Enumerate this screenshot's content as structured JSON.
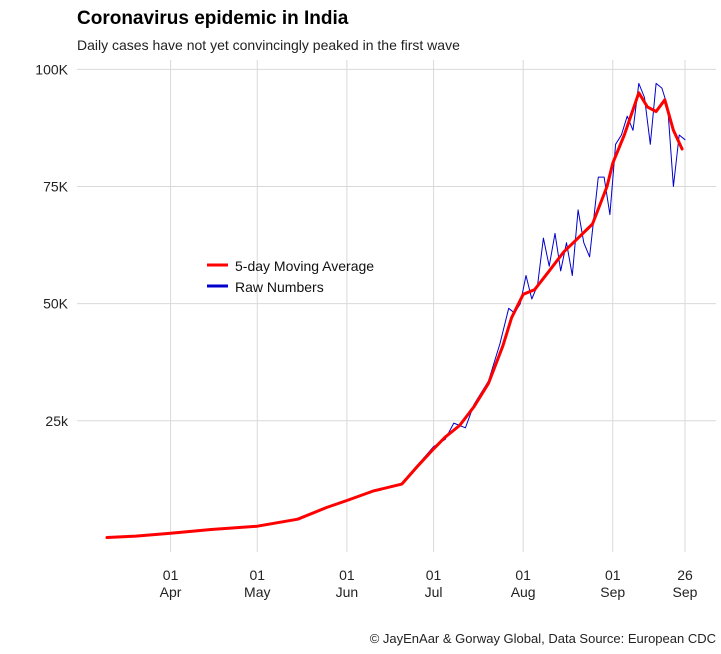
{
  "chart_data": {
    "type": "line",
    "title": "Coronavirus epidemic in India",
    "subtitle": "Daily cases have not yet convincingly peaked in the first wave",
    "caption": "© JayEnAar & Gorway Global, Data Source: European CDC",
    "xlabel": "",
    "ylabel": "",
    "xlim": [
      "2020-03-10",
      "2020-09-26"
    ],
    "ylim": [
      -3000,
      102000
    ],
    "grid": true,
    "legend_position": "left-middle",
    "y_ticks": [
      {
        "value": 25000,
        "label": "25k"
      },
      {
        "value": 50000,
        "label": "50K"
      },
      {
        "value": 75000,
        "label": "75K"
      },
      {
        "value": 100000,
        "label": "100K"
      }
    ],
    "x_ticks": [
      {
        "date": "2020-04-01",
        "day": "01",
        "month": "Apr"
      },
      {
        "date": "2020-05-01",
        "day": "01",
        "month": "May"
      },
      {
        "date": "2020-06-01",
        "day": "01",
        "month": "Jun"
      },
      {
        "date": "2020-07-01",
        "day": "01",
        "month": "Jul"
      },
      {
        "date": "2020-08-01",
        "day": "01",
        "month": "Aug"
      },
      {
        "date": "2020-09-01",
        "day": "01",
        "month": "Sep"
      },
      {
        "date": "2020-09-26",
        "day": "26",
        "month": "Sep"
      }
    ],
    "series": [
      {
        "name": "5-day Moving Average",
        "color": "#ff0000",
        "points": [
          [
            "2020-03-10",
            100
          ],
          [
            "2020-03-20",
            400
          ],
          [
            "2020-04-01",
            1000
          ],
          [
            "2020-04-15",
            1800
          ],
          [
            "2020-05-01",
            2500
          ],
          [
            "2020-05-15",
            4000
          ],
          [
            "2020-05-25",
            6500
          ],
          [
            "2020-06-01",
            8000
          ],
          [
            "2020-06-10",
            10000
          ],
          [
            "2020-06-20",
            11500
          ],
          [
            "2020-06-25",
            15000
          ],
          [
            "2020-07-01",
            19000
          ],
          [
            "2020-07-05",
            21500
          ],
          [
            "2020-07-10",
            24000
          ],
          [
            "2020-07-15",
            28000
          ],
          [
            "2020-07-20",
            33000
          ],
          [
            "2020-07-25",
            41000
          ],
          [
            "2020-07-28",
            47000
          ],
          [
            "2020-08-01",
            52000
          ],
          [
            "2020-08-05",
            53000
          ],
          [
            "2020-08-10",
            57000
          ],
          [
            "2020-08-15",
            61000
          ],
          [
            "2020-08-20",
            64000
          ],
          [
            "2020-08-25",
            67000
          ],
          [
            "2020-08-30",
            75000
          ],
          [
            "2020-09-01",
            80000
          ],
          [
            "2020-09-05",
            86000
          ],
          [
            "2020-09-10",
            95000
          ],
          [
            "2020-09-13",
            92000
          ],
          [
            "2020-09-16",
            91000
          ],
          [
            "2020-09-19",
            93500
          ],
          [
            "2020-09-22",
            87000
          ],
          [
            "2020-09-25",
            83000
          ]
        ]
      },
      {
        "name": "Raw Numbers",
        "color": "#0000cc",
        "points": [
          [
            "2020-03-10",
            100
          ],
          [
            "2020-03-20",
            400
          ],
          [
            "2020-04-01",
            1000
          ],
          [
            "2020-04-15",
            1800
          ],
          [
            "2020-05-01",
            2600
          ],
          [
            "2020-05-10",
            3500
          ],
          [
            "2020-05-15",
            3900
          ],
          [
            "2020-05-25",
            6600
          ],
          [
            "2020-06-01",
            8000
          ],
          [
            "2020-06-10",
            10000
          ],
          [
            "2020-06-20",
            11600
          ],
          [
            "2020-06-25",
            15200
          ],
          [
            "2020-07-01",
            19500
          ],
          [
            "2020-07-05",
            21000
          ],
          [
            "2020-07-08",
            24500
          ],
          [
            "2020-07-12",
            23500
          ],
          [
            "2020-07-15",
            28500
          ],
          [
            "2020-07-20",
            33500
          ],
          [
            "2020-07-24",
            41500
          ],
          [
            "2020-07-27",
            49000
          ],
          [
            "2020-07-29",
            48000
          ],
          [
            "2020-07-31",
            50000
          ],
          [
            "2020-08-02",
            56000
          ],
          [
            "2020-08-04",
            51000
          ],
          [
            "2020-08-06",
            54000
          ],
          [
            "2020-08-08",
            64000
          ],
          [
            "2020-08-10",
            58000
          ],
          [
            "2020-08-12",
            65000
          ],
          [
            "2020-08-14",
            57000
          ],
          [
            "2020-08-16",
            63000
          ],
          [
            "2020-08-18",
            56000
          ],
          [
            "2020-08-20",
            70000
          ],
          [
            "2020-08-22",
            63000
          ],
          [
            "2020-08-24",
            60000
          ],
          [
            "2020-08-27",
            77000
          ],
          [
            "2020-08-29",
            77000
          ],
          [
            "2020-08-31",
            69000
          ],
          [
            "2020-09-02",
            84000
          ],
          [
            "2020-09-04",
            86000
          ],
          [
            "2020-09-06",
            90000
          ],
          [
            "2020-09-08",
            87000
          ],
          [
            "2020-09-10",
            97000
          ],
          [
            "2020-09-12",
            94000
          ],
          [
            "2020-09-14",
            84000
          ],
          [
            "2020-09-16",
            97000
          ],
          [
            "2020-09-18",
            96000
          ],
          [
            "2020-09-20",
            92000
          ],
          [
            "2020-09-22",
            75000
          ],
          [
            "2020-09-24",
            86000
          ],
          [
            "2020-09-26",
            85000
          ]
        ]
      }
    ]
  }
}
